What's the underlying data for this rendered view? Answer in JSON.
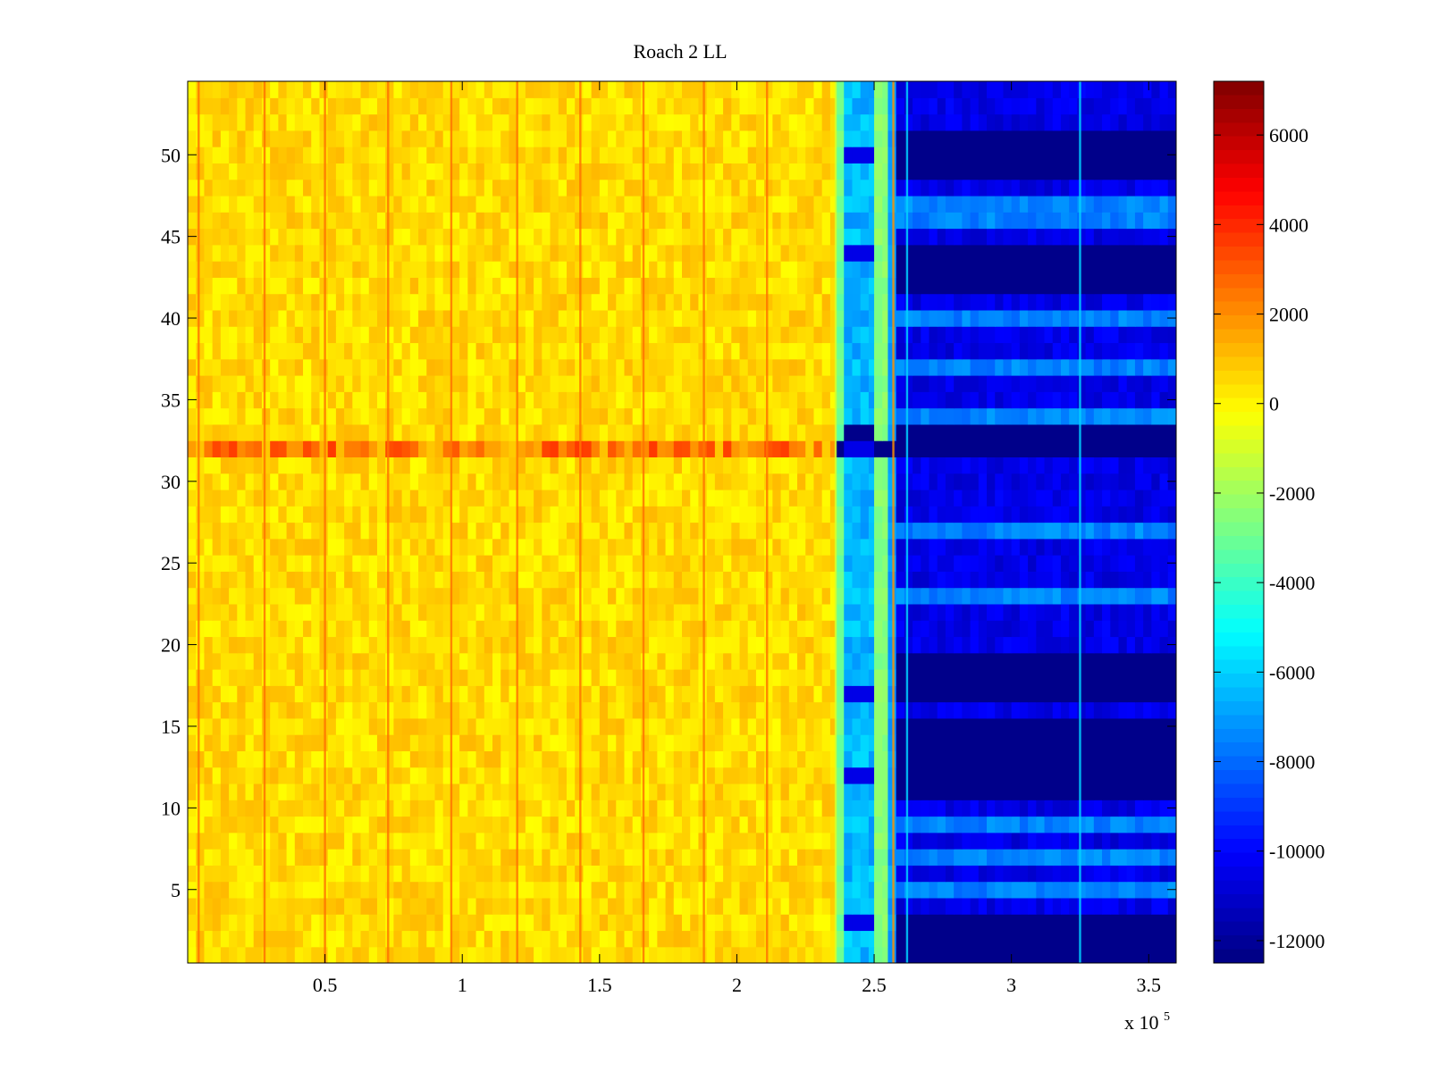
{
  "chart_data": {
    "type": "heatmap",
    "title": "Roach 2 LL",
    "xlabel": "",
    "ylabel": "",
    "x_multiplier_label": "x 10",
    "x_multiplier_exponent": "5",
    "xlim": [
      0,
      360000
    ],
    "ylim": [
      0.5,
      54.5
    ],
    "x_ticks": [
      {
        "value": 50000,
        "label": "0.5"
      },
      {
        "value": 100000,
        "label": "1"
      },
      {
        "value": 150000,
        "label": "1.5"
      },
      {
        "value": 200000,
        "label": "2"
      },
      {
        "value": 250000,
        "label": "2.5"
      },
      {
        "value": 300000,
        "label": "3"
      },
      {
        "value": 350000,
        "label": "3.5"
      }
    ],
    "y_ticks": [
      {
        "value": 5,
        "label": "5"
      },
      {
        "value": 10,
        "label": "10"
      },
      {
        "value": 15,
        "label": "15"
      },
      {
        "value": 20,
        "label": "20"
      },
      {
        "value": 25,
        "label": "25"
      },
      {
        "value": 30,
        "label": "30"
      },
      {
        "value": 35,
        "label": "35"
      },
      {
        "value": 40,
        "label": "40"
      },
      {
        "value": 45,
        "label": "45"
      },
      {
        "value": 50,
        "label": "50"
      }
    ],
    "colorbar": {
      "colormap": "jet",
      "clim": [
        -12500,
        7200
      ],
      "ticks": [
        {
          "value": 6000,
          "label": "6000"
        },
        {
          "value": 4000,
          "label": "4000"
        },
        {
          "value": 2000,
          "label": "2000"
        },
        {
          "value": 0,
          "label": "0"
        },
        {
          "value": -2000,
          "label": "-2000"
        },
        {
          "value": -4000,
          "label": "-4000"
        },
        {
          "value": -6000,
          "label": "-6000"
        },
        {
          "value": -8000,
          "label": "-8000"
        },
        {
          "value": -10000,
          "label": "-10000"
        },
        {
          "value": -12000,
          "label": "-12000"
        }
      ]
    },
    "rows": 54,
    "regions": [
      {
        "x_start": 0,
        "x_end": 236000,
        "level": "baseline",
        "value": 0
      },
      {
        "x_start": 236000,
        "x_end": 239000,
        "value": -3000
      },
      {
        "x_start": 239000,
        "x_end": 250000,
        "value": -6500
      },
      {
        "x_start": 250000,
        "x_end": 255000,
        "value": -2500
      },
      {
        "x_start": 255000,
        "x_end": 258000,
        "value": -7000
      },
      {
        "x_start": 258000,
        "x_end": 360000,
        "value": -10500
      }
    ],
    "high_rows": [
      32
    ],
    "high_row_value": 2200,
    "low_rows_right": [
      1,
      2,
      3,
      11,
      12,
      13,
      14,
      15,
      17,
      18,
      19,
      32,
      33,
      42,
      43,
      44,
      49,
      50,
      51
    ],
    "low_rows_right_value": -12300,
    "bright_rows_right": [
      5,
      7,
      9,
      23,
      27,
      34,
      37,
      40,
      46,
      47
    ],
    "bright_rows_right_value": -7500,
    "vertical_lines": [
      {
        "x": 4000,
        "value": 2500
      },
      {
        "x": 28000,
        "value": 2500
      },
      {
        "x": 50000,
        "value": 2500
      },
      {
        "x": 73000,
        "value": 2500
      },
      {
        "x": 96000,
        "value": 2500
      },
      {
        "x": 120000,
        "value": 2500
      },
      {
        "x": 143000,
        "value": 2500
      },
      {
        "x": 166000,
        "value": 2500
      },
      {
        "x": 188000,
        "value": 2500
      },
      {
        "x": 211000,
        "value": 2500
      },
      {
        "x": 236000,
        "value": -1000
      },
      {
        "x": 257000,
        "value": 2000
      },
      {
        "x": 262000,
        "value": -6000
      },
      {
        "x": 325000,
        "value": -6000
      }
    ]
  }
}
